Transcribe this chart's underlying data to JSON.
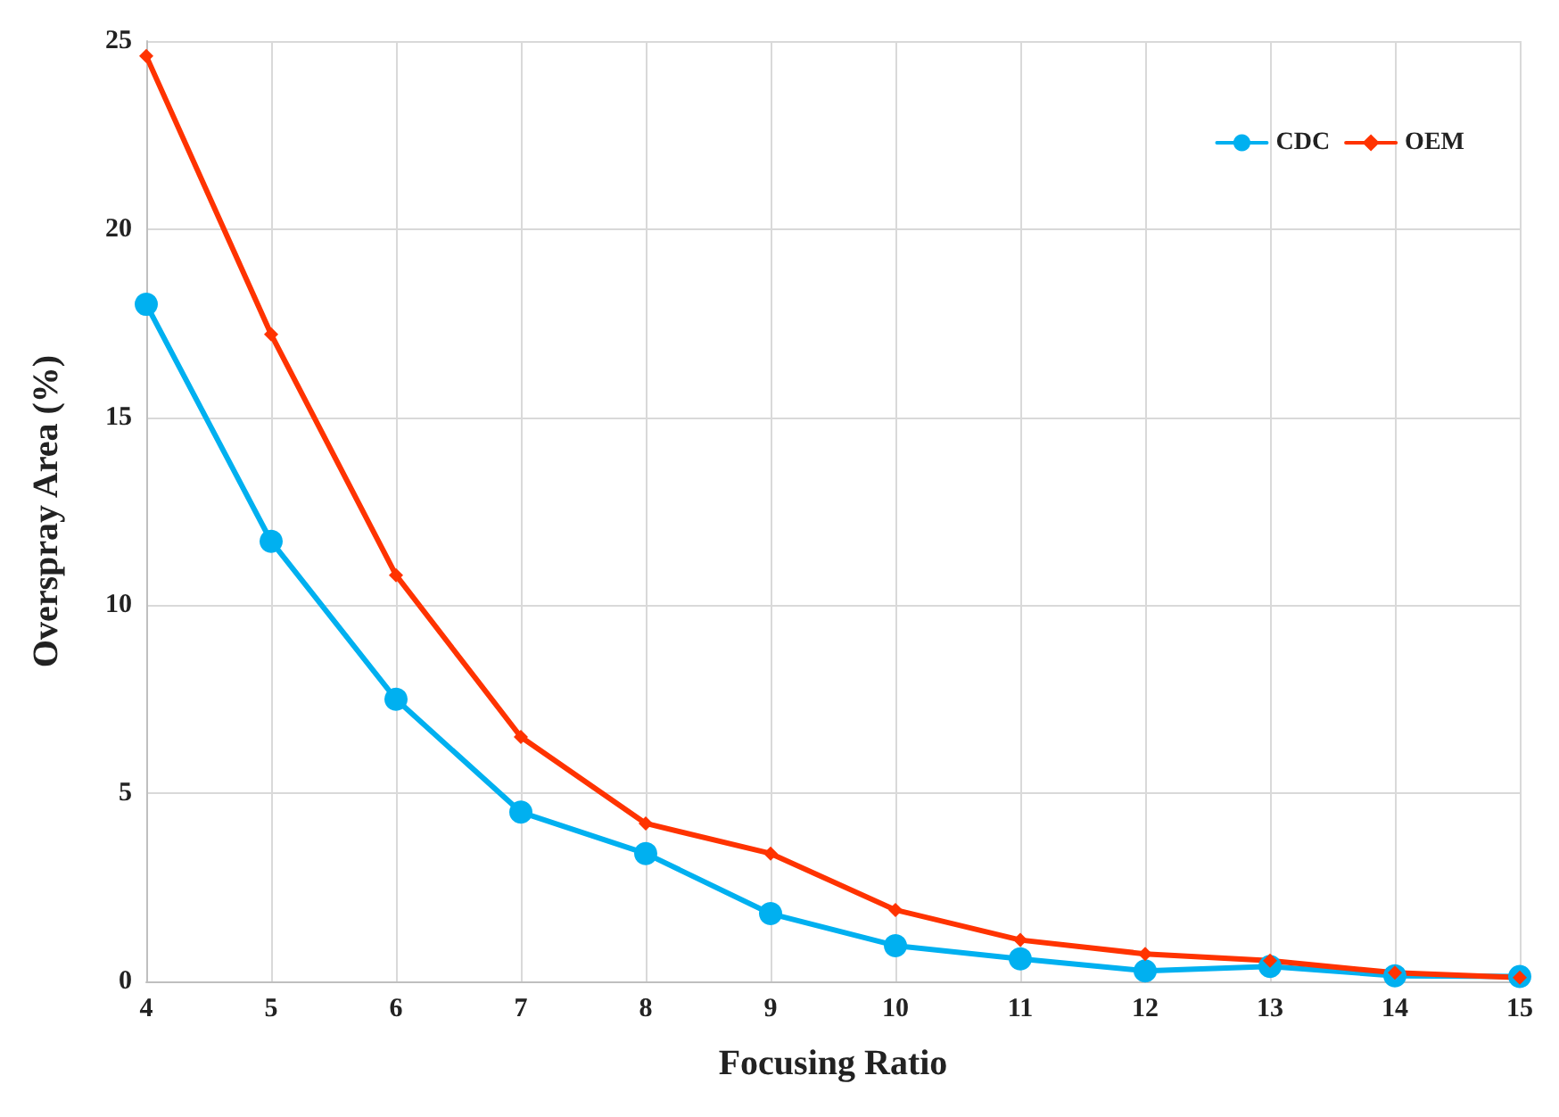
{
  "chart_data": {
    "type": "line",
    "xlabel": "Focusing Ratio",
    "ylabel": "Overspray Area (%)",
    "x": [
      4,
      5,
      6,
      7,
      8,
      9,
      10,
      11,
      12,
      13,
      14,
      15
    ],
    "series": [
      {
        "name": "CDC",
        "color": "#00b0f0",
        "marker": "circle",
        "values": [
          18.0,
          11.7,
          7.5,
          4.5,
          3.4,
          1.8,
          0.95,
          0.6,
          0.28,
          0.4,
          0.15,
          0.13
        ]
      },
      {
        "name": "OEM",
        "color": "#ff3300",
        "marker": "diamond",
        "values": [
          24.6,
          17.2,
          10.8,
          6.5,
          4.2,
          3.4,
          1.9,
          1.1,
          0.73,
          0.55,
          0.23,
          0.1
        ]
      }
    ],
    "xlim": [
      4,
      15
    ],
    "xticks": [
      4,
      5,
      6,
      7,
      8,
      9,
      10,
      11,
      12,
      13,
      14,
      15
    ],
    "ylim": [
      0,
      25
    ],
    "yticks": [
      0,
      5,
      10,
      15,
      20,
      25
    ],
    "grid": true,
    "legend": "top right",
    "line_style": "solid"
  }
}
